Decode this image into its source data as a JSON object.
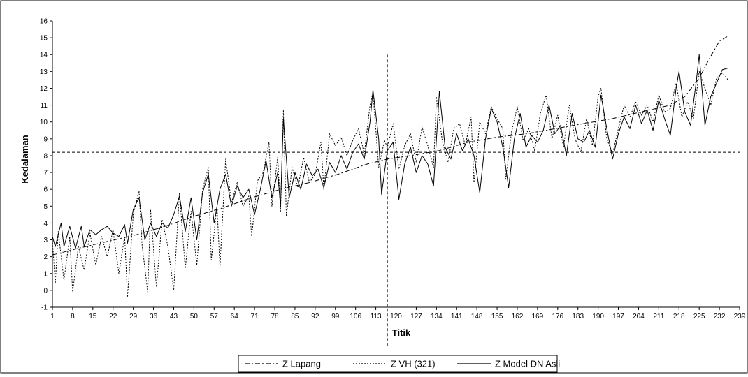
{
  "chart_data": {
    "type": "line",
    "title": "",
    "xlabel": "Titik",
    "ylabel": "Kedalaman",
    "xlim": [
      1,
      239
    ],
    "ylim": [
      -1,
      16
    ],
    "x_tick_labels": [
      "1",
      "8",
      "15",
      "22",
      "29",
      "36",
      "43",
      "50",
      "57",
      "64",
      "71",
      "78",
      "85",
      "92",
      "99",
      "106",
      "113",
      "120",
      "127",
      "134",
      "141",
      "148",
      "155",
      "162",
      "169",
      "176",
      "183",
      "190",
      "197",
      "204",
      "211",
      "218",
      "225",
      "232",
      "239"
    ],
    "y_tick_labels": [
      "-1",
      "0",
      "1",
      "2",
      "3",
      "4",
      "5",
      "6",
      "7",
      "8",
      "9",
      "10",
      "11",
      "12",
      "13",
      "14",
      "15",
      "16"
    ],
    "grid": false,
    "legend_position": "bottom",
    "reference_lines": {
      "horizontal_y": 8.2,
      "vertical_x": 117
    },
    "series": [
      {
        "name": "Z Lapang",
        "style": "dash-dot",
        "color": "#000000",
        "points": [
          [
            1,
            2.1
          ],
          [
            10,
            2.5
          ],
          [
            20,
            2.9
          ],
          [
            30,
            3.3
          ],
          [
            40,
            3.8
          ],
          [
            50,
            4.4
          ],
          [
            60,
            4.9
          ],
          [
            70,
            5.5
          ],
          [
            80,
            6.0
          ],
          [
            90,
            6.4
          ],
          [
            100,
            6.9
          ],
          [
            110,
            7.5
          ],
          [
            117,
            7.8
          ],
          [
            125,
            8.0
          ],
          [
            135,
            8.3
          ],
          [
            145,
            8.8
          ],
          [
            155,
            9.1
          ],
          [
            165,
            9.3
          ],
          [
            175,
            9.6
          ],
          [
            185,
            9.9
          ],
          [
            195,
            10.2
          ],
          [
            205,
            10.6
          ],
          [
            215,
            11.0
          ],
          [
            220,
            11.5
          ],
          [
            225,
            12.6
          ],
          [
            228,
            13.6
          ],
          [
            232,
            14.8
          ],
          [
            235,
            15.1
          ]
        ]
      },
      {
        "name": "Z VH (321)",
        "style": "dotted",
        "color": "#000000",
        "points": [
          [
            1,
            3.0
          ],
          [
            2,
            0.4
          ],
          [
            3,
            3.5
          ],
          [
            5,
            0.6
          ],
          [
            7,
            3.2
          ],
          [
            8,
            -0.1
          ],
          [
            10,
            2.6
          ],
          [
            12,
            1.2
          ],
          [
            14,
            3.4
          ],
          [
            16,
            1.5
          ],
          [
            18,
            3.2
          ],
          [
            20,
            2.0
          ],
          [
            22,
            3.6
          ],
          [
            24,
            1.0
          ],
          [
            26,
            3.2
          ],
          [
            27,
            -0.4
          ],
          [
            29,
            4.5
          ],
          [
            31,
            5.9
          ],
          [
            32,
            2.8
          ],
          [
            34,
            -0.1
          ],
          [
            35,
            4.8
          ],
          [
            37,
            0.2
          ],
          [
            39,
            4.2
          ],
          [
            41,
            2.6
          ],
          [
            43,
            0.0
          ],
          [
            45,
            5.8
          ],
          [
            47,
            1.3
          ],
          [
            49,
            4.7
          ],
          [
            51,
            1.5
          ],
          [
            53,
            6.0
          ],
          [
            55,
            7.3
          ],
          [
            56,
            1.8
          ],
          [
            58,
            5.0
          ],
          [
            59,
            1.4
          ],
          [
            61,
            7.8
          ],
          [
            63,
            5.2
          ],
          [
            65,
            6.4
          ],
          [
            67,
            5.0
          ],
          [
            69,
            5.6
          ],
          [
            70,
            3.2
          ],
          [
            72,
            6.5
          ],
          [
            74,
            7.0
          ],
          [
            76,
            8.8
          ],
          [
            77,
            5.0
          ],
          [
            79,
            7.9
          ],
          [
            80,
            4.7
          ],
          [
            81,
            10.7
          ],
          [
            82,
            4.4
          ],
          [
            84,
            7.3
          ],
          [
            86,
            6.1
          ],
          [
            88,
            7.9
          ],
          [
            90,
            6.4
          ],
          [
            92,
            6.9
          ],
          [
            94,
            8.8
          ],
          [
            95,
            6.0
          ],
          [
            97,
            9.3
          ],
          [
            99,
            8.6
          ],
          [
            101,
            9.1
          ],
          [
            103,
            8.0
          ],
          [
            105,
            8.9
          ],
          [
            107,
            9.6
          ],
          [
            109,
            8.1
          ],
          [
            111,
            11.0
          ],
          [
            112,
            11.8
          ],
          [
            114,
            7.3
          ],
          [
            116,
            8.9
          ],
          [
            117,
            8.5
          ],
          [
            119,
            9.9
          ],
          [
            121,
            7.2
          ],
          [
            123,
            8.6
          ],
          [
            125,
            9.3
          ],
          [
            127,
            7.6
          ],
          [
            129,
            9.7
          ],
          [
            131,
            8.6
          ],
          [
            133,
            7.3
          ],
          [
            134,
            11.5
          ],
          [
            136,
            8.9
          ],
          [
            138,
            7.6
          ],
          [
            140,
            9.6
          ],
          [
            142,
            9.9
          ],
          [
            144,
            8.6
          ],
          [
            146,
            10.3
          ],
          [
            147,
            6.4
          ],
          [
            149,
            10.0
          ],
          [
            151,
            9.3
          ],
          [
            153,
            10.9
          ],
          [
            155,
            10.2
          ],
          [
            157,
            9.6
          ],
          [
            158,
            6.6
          ],
          [
            160,
            9.4
          ],
          [
            162,
            10.9
          ],
          [
            164,
            8.9
          ],
          [
            166,
            9.6
          ],
          [
            168,
            8.3
          ],
          [
            170,
            10.5
          ],
          [
            172,
            11.6
          ],
          [
            174,
            9.0
          ],
          [
            176,
            10.4
          ],
          [
            178,
            8.5
          ],
          [
            180,
            11.0
          ],
          [
            182,
            9.0
          ],
          [
            184,
            8.2
          ],
          [
            186,
            10.2
          ],
          [
            188,
            8.6
          ],
          [
            190,
            11.5
          ],
          [
            191,
            12.0
          ],
          [
            193,
            9.0
          ],
          [
            195,
            8.1
          ],
          [
            197,
            9.6
          ],
          [
            199,
            11.0
          ],
          [
            201,
            10.3
          ],
          [
            203,
            11.2
          ],
          [
            205,
            10.4
          ],
          [
            207,
            11.0
          ],
          [
            209,
            10.0
          ],
          [
            211,
            11.6
          ],
          [
            213,
            10.6
          ],
          [
            215,
            10.8
          ],
          [
            217,
            12.3
          ],
          [
            219,
            10.3
          ],
          [
            221,
            11.2
          ],
          [
            223,
            10.2
          ],
          [
            225,
            13.0
          ],
          [
            227,
            12.0
          ],
          [
            229,
            11.0
          ],
          [
            231,
            12.6
          ],
          [
            233,
            12.9
          ],
          [
            235,
            12.5
          ]
        ]
      },
      {
        "name": "Z Model DN Asli",
        "style": "solid",
        "color": "#000000",
        "points": [
          [
            1,
            3.2
          ],
          [
            2,
            2.6
          ],
          [
            4,
            4.0
          ],
          [
            5,
            2.6
          ],
          [
            7,
            3.8
          ],
          [
            9,
            2.5
          ],
          [
            11,
            3.8
          ],
          [
            12,
            2.6
          ],
          [
            14,
            3.6
          ],
          [
            16,
            3.3
          ],
          [
            18,
            3.6
          ],
          [
            20,
            3.8
          ],
          [
            22,
            3.4
          ],
          [
            24,
            3.2
          ],
          [
            26,
            3.9
          ],
          [
            27,
            2.8
          ],
          [
            29,
            4.8
          ],
          [
            31,
            5.5
          ],
          [
            33,
            3.0
          ],
          [
            35,
            4.0
          ],
          [
            37,
            3.2
          ],
          [
            39,
            4.0
          ],
          [
            41,
            3.7
          ],
          [
            43,
            4.5
          ],
          [
            45,
            5.6
          ],
          [
            47,
            3.5
          ],
          [
            49,
            5.5
          ],
          [
            51,
            3.0
          ],
          [
            53,
            5.8
          ],
          [
            55,
            6.9
          ],
          [
            57,
            4.0
          ],
          [
            59,
            6.0
          ],
          [
            61,
            6.9
          ],
          [
            63,
            5.0
          ],
          [
            65,
            6.2
          ],
          [
            67,
            5.5
          ],
          [
            69,
            6.0
          ],
          [
            71,
            4.5
          ],
          [
            73,
            6.0
          ],
          [
            75,
            7.7
          ],
          [
            77,
            5.5
          ],
          [
            79,
            7.0
          ],
          [
            80,
            5.0
          ],
          [
            81,
            10.2
          ],
          [
            83,
            5.5
          ],
          [
            85,
            7.0
          ],
          [
            87,
            6.0
          ],
          [
            89,
            7.5
          ],
          [
            91,
            6.8
          ],
          [
            93,
            7.2
          ],
          [
            95,
            6.1
          ],
          [
            97,
            7.6
          ],
          [
            99,
            7.0
          ],
          [
            101,
            8.0
          ],
          [
            103,
            7.2
          ],
          [
            105,
            8.2
          ],
          [
            107,
            8.7
          ],
          [
            109,
            7.8
          ],
          [
            111,
            10.0
          ],
          [
            112,
            11.9
          ],
          [
            114,
            9.0
          ],
          [
            115,
            5.7
          ],
          [
            117,
            8.3
          ],
          [
            119,
            8.8
          ],
          [
            121,
            5.4
          ],
          [
            123,
            7.5
          ],
          [
            125,
            8.5
          ],
          [
            127,
            7.0
          ],
          [
            129,
            8.0
          ],
          [
            131,
            7.5
          ],
          [
            133,
            6.2
          ],
          [
            135,
            11.8
          ],
          [
            137,
            8.5
          ],
          [
            139,
            7.8
          ],
          [
            141,
            9.3
          ],
          [
            143,
            8.3
          ],
          [
            145,
            9.0
          ],
          [
            147,
            8.0
          ],
          [
            149,
            5.8
          ],
          [
            151,
            9.0
          ],
          [
            153,
            10.8
          ],
          [
            155,
            10.0
          ],
          [
            157,
            8.5
          ],
          [
            159,
            6.1
          ],
          [
            161,
            9.0
          ],
          [
            163,
            10.5
          ],
          [
            165,
            8.5
          ],
          [
            167,
            9.2
          ],
          [
            169,
            8.8
          ],
          [
            171,
            9.5
          ],
          [
            173,
            11.0
          ],
          [
            175,
            9.3
          ],
          [
            177,
            9.8
          ],
          [
            179,
            8.0
          ],
          [
            181,
            10.5
          ],
          [
            183,
            9.0
          ],
          [
            185,
            8.8
          ],
          [
            187,
            9.5
          ],
          [
            189,
            8.5
          ],
          [
            191,
            11.6
          ],
          [
            193,
            9.6
          ],
          [
            195,
            7.8
          ],
          [
            197,
            9.3
          ],
          [
            199,
            10.3
          ],
          [
            201,
            9.6
          ],
          [
            203,
            11.0
          ],
          [
            205,
            9.9
          ],
          [
            207,
            10.7
          ],
          [
            209,
            9.5
          ],
          [
            211,
            11.3
          ],
          [
            213,
            10.2
          ],
          [
            215,
            9.2
          ],
          [
            217,
            12.0
          ],
          [
            218,
            13.0
          ],
          [
            220,
            10.6
          ],
          [
            222,
            9.8
          ],
          [
            224,
            12.4
          ],
          [
            225,
            14.0
          ],
          [
            227,
            9.8
          ],
          [
            229,
            11.5
          ],
          [
            231,
            12.3
          ],
          [
            233,
            13.1
          ],
          [
            235,
            13.2
          ]
        ]
      }
    ]
  }
}
